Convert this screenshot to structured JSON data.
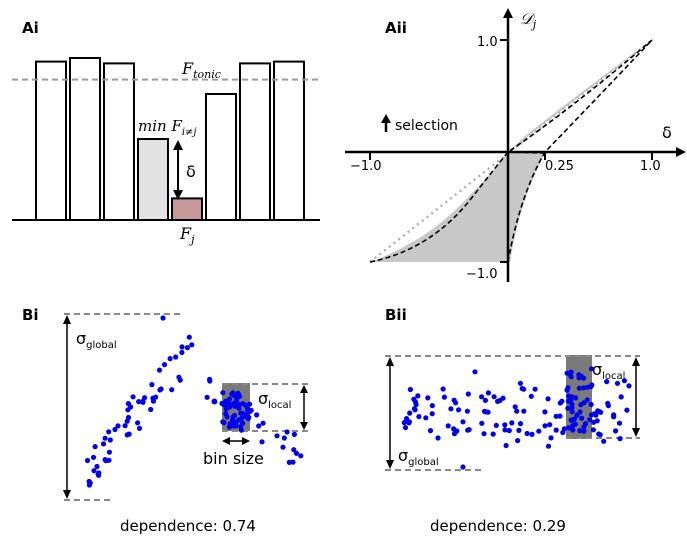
{
  "panels": {
    "ai": {
      "label": "Ai",
      "bar_values": [
        0.88,
        0.9,
        0.87,
        0.45,
        0.12,
        0.7,
        0.87,
        0.88
      ],
      "highlight_index": 3,
      "target_index": 4,
      "tonic_level": 0.78,
      "tonic_label": "F",
      "tonic_sub": "tonic",
      "min_label": "min F",
      "min_sub": "i≠j",
      "delta_label": "δ",
      "fj_label": "F",
      "fj_sub": "j",
      "colors": {
        "bar": "#ffffff",
        "highlight": "#e2e2e2",
        "target": "#c7999a",
        "tonic": "#9a9a9a"
      }
    },
    "aii": {
      "label": "Aii",
      "y_axis_label": "𝒟",
      "y_axis_sub": "j",
      "x_axis_label": "δ",
      "x_ticks": [
        "−1.0",
        "0.25",
        "1.0"
      ],
      "y_ticks": [
        "1.0",
        "−1.0"
      ],
      "selection_label": "selection",
      "colors": {
        "shade": "#c8c8c8",
        "identity": "#b0b0b0"
      }
    },
    "bi": {
      "label": "Bi",
      "sigma_global": "σ",
      "sigma_global_sub": "global",
      "sigma_local": "σ",
      "sigma_local_sub": "local",
      "bin_size_label": "bin size",
      "caption": "dependence: 0.74"
    },
    "bii": {
      "label": "Bii",
      "sigma_global": "σ",
      "sigma_global_sub": "global",
      "sigma_local": "σ",
      "sigma_local_sub": "local",
      "caption": "dependence: 0.29"
    }
  },
  "colors": {
    "points": "#0000ee",
    "bin": "#7a7a7a",
    "guide": "#888888"
  }
}
